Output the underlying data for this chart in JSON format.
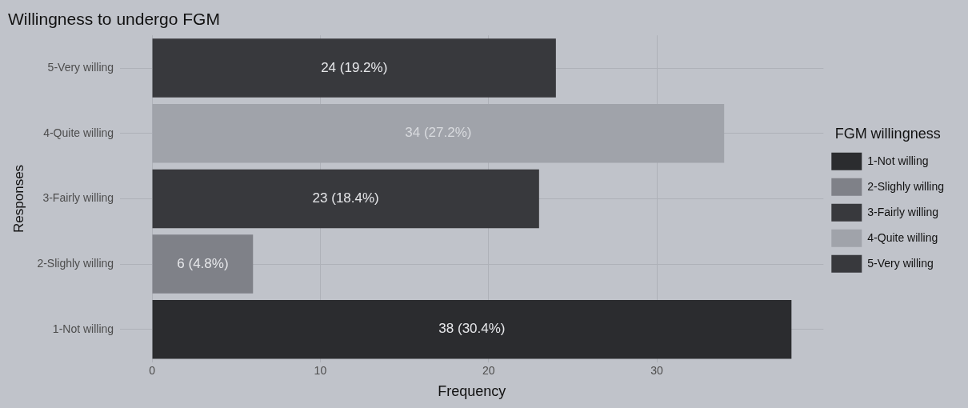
{
  "chart_data": {
    "type": "bar",
    "orientation": "horizontal",
    "stacked": true,
    "title": "Willingness to undergo FGM",
    "xlabel": "Frequency",
    "ylabel": "Responses",
    "legend_title": "FGM willingness",
    "categories": [
      "5-Very willing",
      "4-Quite willing",
      "3-Fairly willing",
      "2-Slighly willing",
      "1-Not willing"
    ],
    "series": [
      {
        "name": "1-Not willing",
        "color": "#2b2c2f",
        "values": [
          null,
          null,
          null,
          null,
          38
        ],
        "value_labels": [
          null,
          null,
          null,
          null,
          "38 (30.4%)"
        ]
      },
      {
        "name": "2-Slighly willing",
        "color": "#7f8188",
        "values": [
          null,
          null,
          null,
          6,
          null
        ],
        "value_labels": [
          null,
          null,
          null,
          "6 (4.8%)",
          null
        ]
      },
      {
        "name": "3-Fairly willing",
        "color": "#38393d",
        "values": [
          null,
          null,
          23,
          null,
          null
        ],
        "value_labels": [
          null,
          null,
          "23 (18.4%)",
          null,
          null
        ]
      },
      {
        "name": "4-Quite willing",
        "color": "#a0a3aa",
        "values": [
          null,
          34,
          null,
          null,
          null
        ],
        "value_labels": [
          null,
          "34 (27.2%)",
          null,
          null,
          null
        ]
      },
      {
        "name": "5-Very willing",
        "color": "#38393d",
        "values": [
          24,
          null,
          null,
          null,
          null
        ],
        "value_labels": [
          "24 (19.2%)",
          null,
          null,
          null,
          null
        ]
      }
    ],
    "xlim": [
      -1.9,
      39.9
    ],
    "xticks": [
      0,
      10,
      20,
      30
    ],
    "grid": true,
    "legend": "right"
  }
}
